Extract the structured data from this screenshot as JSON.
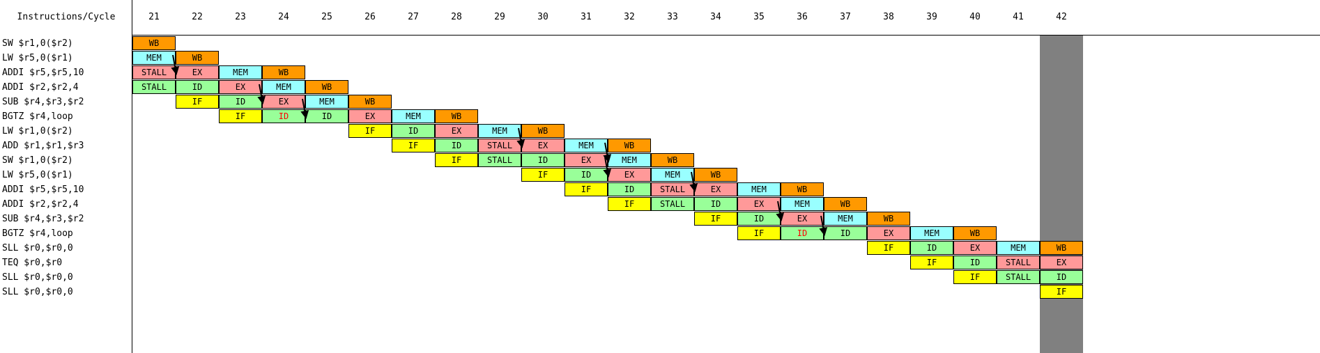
{
  "header": {
    "first_column": "Instructions/Cycle",
    "cycles": [
      "21",
      "22",
      "23",
      "24",
      "25",
      "26",
      "27",
      "28",
      "29",
      "30",
      "31",
      "32",
      "33",
      "34",
      "35",
      "36",
      "37",
      "38",
      "39",
      "40",
      "41",
      "42"
    ]
  },
  "colors": {
    "IF": "#ffff00",
    "ID": "#99ff99",
    "EX": "#ff9999",
    "MEM": "#99ffff",
    "WB": "#ff9900",
    "STALL_default": "#ff9999",
    "highlight_column": "#808080",
    "red_text": "#ff0000"
  },
  "highlight_cycle": "42",
  "instructions": [
    {
      "label": "SW $r1,0($r2)",
      "stages": [
        {
          "cycle": "21",
          "text": "WB"
        }
      ]
    },
    {
      "label": "LW $r5,0($r1)",
      "stages": [
        {
          "cycle": "21",
          "text": "MEM"
        },
        {
          "cycle": "22",
          "text": "WB"
        }
      ]
    },
    {
      "label": "ADDI $r5,$r5,10",
      "stages": [
        {
          "cycle": "21",
          "text": "STALL",
          "color": "#ff9999"
        },
        {
          "cycle": "22",
          "text": "EX"
        },
        {
          "cycle": "23",
          "text": "MEM"
        },
        {
          "cycle": "24",
          "text": "WB"
        }
      ]
    },
    {
      "label": "ADDI $r2,$r2,4",
      "stages": [
        {
          "cycle": "21",
          "text": "STALL",
          "color": "#99ff99"
        },
        {
          "cycle": "22",
          "text": "ID"
        },
        {
          "cycle": "23",
          "text": "EX"
        },
        {
          "cycle": "24",
          "text": "MEM"
        },
        {
          "cycle": "25",
          "text": "WB"
        }
      ]
    },
    {
      "label": "SUB $r4,$r3,$r2",
      "stages": [
        {
          "cycle": "22",
          "text": "IF"
        },
        {
          "cycle": "23",
          "text": "ID"
        },
        {
          "cycle": "24",
          "text": "EX"
        },
        {
          "cycle": "25",
          "text": "MEM"
        },
        {
          "cycle": "26",
          "text": "WB"
        }
      ]
    },
    {
      "label": "BGTZ $r4,loop",
      "stages": [
        {
          "cycle": "23",
          "text": "IF"
        },
        {
          "cycle": "24",
          "text": "ID",
          "red": true
        },
        {
          "cycle": "25",
          "text": "ID"
        },
        {
          "cycle": "26",
          "text": "EX"
        },
        {
          "cycle": "27",
          "text": "MEM"
        },
        {
          "cycle": "28",
          "text": "WB"
        }
      ]
    },
    {
      "label": "LW $r1,0($r2)",
      "stages": [
        {
          "cycle": "26",
          "text": "IF"
        },
        {
          "cycle": "27",
          "text": "ID"
        },
        {
          "cycle": "28",
          "text": "EX"
        },
        {
          "cycle": "29",
          "text": "MEM"
        },
        {
          "cycle": "30",
          "text": "WB"
        }
      ]
    },
    {
      "label": "ADD $r1,$r1,$r3",
      "stages": [
        {
          "cycle": "27",
          "text": "IF"
        },
        {
          "cycle": "28",
          "text": "ID"
        },
        {
          "cycle": "29",
          "text": "STALL",
          "color": "#ff9999"
        },
        {
          "cycle": "30",
          "text": "EX"
        },
        {
          "cycle": "31",
          "text": "MEM"
        },
        {
          "cycle": "32",
          "text": "WB"
        }
      ]
    },
    {
      "label": "SW $r1,0($r2)",
      "stages": [
        {
          "cycle": "28",
          "text": "IF"
        },
        {
          "cycle": "29",
          "text": "STALL",
          "color": "#99ff99"
        },
        {
          "cycle": "30",
          "text": "ID"
        },
        {
          "cycle": "31",
          "text": "EX"
        },
        {
          "cycle": "32",
          "text": "MEM"
        },
        {
          "cycle": "33",
          "text": "WB"
        }
      ]
    },
    {
      "label": "LW $r5,0($r1)",
      "stages": [
        {
          "cycle": "30",
          "text": "IF"
        },
        {
          "cycle": "31",
          "text": "ID"
        },
        {
          "cycle": "32",
          "text": "EX"
        },
        {
          "cycle": "33",
          "text": "MEM"
        },
        {
          "cycle": "34",
          "text": "WB"
        }
      ]
    },
    {
      "label": "ADDI $r5,$r5,10",
      "stages": [
        {
          "cycle": "31",
          "text": "IF"
        },
        {
          "cycle": "32",
          "text": "ID"
        },
        {
          "cycle": "33",
          "text": "STALL",
          "color": "#ff9999"
        },
        {
          "cycle": "34",
          "text": "EX"
        },
        {
          "cycle": "35",
          "text": "MEM"
        },
        {
          "cycle": "36",
          "text": "WB"
        }
      ]
    },
    {
      "label": "ADDI $r2,$r2,4",
      "stages": [
        {
          "cycle": "32",
          "text": "IF"
        },
        {
          "cycle": "33",
          "text": "STALL",
          "color": "#99ff99"
        },
        {
          "cycle": "34",
          "text": "ID"
        },
        {
          "cycle": "35",
          "text": "EX"
        },
        {
          "cycle": "36",
          "text": "MEM"
        },
        {
          "cycle": "37",
          "text": "WB"
        }
      ]
    },
    {
      "label": "SUB $r4,$r3,$r2",
      "stages": [
        {
          "cycle": "34",
          "text": "IF"
        },
        {
          "cycle": "35",
          "text": "ID"
        },
        {
          "cycle": "36",
          "text": "EX"
        },
        {
          "cycle": "37",
          "text": "MEM"
        },
        {
          "cycle": "38",
          "text": "WB"
        }
      ]
    },
    {
      "label": "BGTZ $r4,loop",
      "stages": [
        {
          "cycle": "35",
          "text": "IF"
        },
        {
          "cycle": "36",
          "text": "ID",
          "red": true
        },
        {
          "cycle": "37",
          "text": "ID"
        },
        {
          "cycle": "38",
          "text": "EX"
        },
        {
          "cycle": "39",
          "text": "MEM"
        },
        {
          "cycle": "40",
          "text": "WB"
        }
      ]
    },
    {
      "label": "SLL $r0,$r0,0",
      "stages": [
        {
          "cycle": "38",
          "text": "IF"
        },
        {
          "cycle": "39",
          "text": "ID"
        },
        {
          "cycle": "40",
          "text": "EX"
        },
        {
          "cycle": "41",
          "text": "MEM"
        },
        {
          "cycle": "42",
          "text": "WB"
        }
      ]
    },
    {
      "label": "TEQ $r0,$r0",
      "stages": [
        {
          "cycle": "39",
          "text": "IF"
        },
        {
          "cycle": "40",
          "text": "ID"
        },
        {
          "cycle": "41",
          "text": "STALL",
          "color": "#ff9999"
        },
        {
          "cycle": "42",
          "text": "EX"
        }
      ]
    },
    {
      "label": "SLL $r0,$r0,0",
      "stages": [
        {
          "cycle": "40",
          "text": "IF"
        },
        {
          "cycle": "41",
          "text": "STALL",
          "color": "#99ff99"
        },
        {
          "cycle": "42",
          "text": "ID"
        }
      ]
    },
    {
      "label": "SLL $r0,$r0,0",
      "stages": [
        {
          "cycle": "42",
          "text": "IF"
        }
      ]
    }
  ],
  "forwarding_arrows": [
    {
      "from": {
        "row": 1,
        "cycle": "22"
      },
      "to": {
        "row": 2,
        "cycle": "22"
      }
    },
    {
      "from": {
        "row": 3,
        "cycle": "24"
      },
      "to": {
        "row": 4,
        "cycle": "24"
      }
    },
    {
      "from": {
        "row": 4,
        "cycle": "25"
      },
      "to": {
        "row": 5,
        "cycle": "25"
      }
    },
    {
      "from": {
        "row": 6,
        "cycle": "30"
      },
      "to": {
        "row": 7,
        "cycle": "30"
      }
    },
    {
      "from": {
        "row": 7,
        "cycle": "32"
      },
      "to": {
        "row": 8,
        "cycle": "32"
      }
    },
    {
      "from": {
        "row": 8,
        "cycle": "32"
      },
      "to": {
        "row": 9,
        "cycle": "32"
      }
    },
    {
      "from": {
        "row": 9,
        "cycle": "34"
      },
      "to": {
        "row": 10,
        "cycle": "34"
      }
    },
    {
      "from": {
        "row": 11,
        "cycle": "36"
      },
      "to": {
        "row": 12,
        "cycle": "36"
      }
    },
    {
      "from": {
        "row": 12,
        "cycle": "37"
      },
      "to": {
        "row": 13,
        "cycle": "37"
      }
    }
  ]
}
